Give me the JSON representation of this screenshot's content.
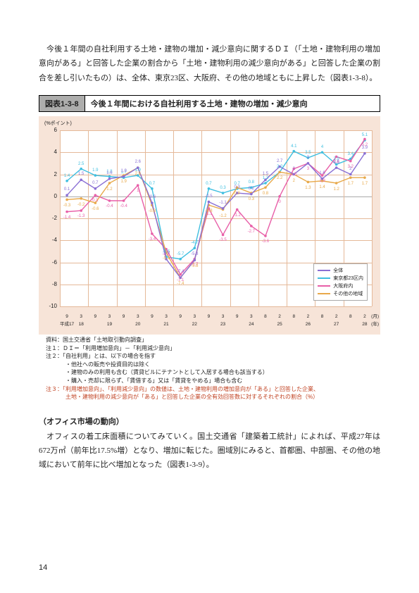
{
  "intro_text": "今後１年間の自社利用する土地・建物の増加・減少意向に関するＤＩ（「土地・建物利用の増加意向がある」と回答した企業の割合から「土地・建物利用の減少意向がある」と回答した企業の割合を差し引いたもの）は、全体、東京23区、大阪府、その他の地域ともに上昇した（図表1-3-8）。",
  "figure_label": "図表1-3-8",
  "figure_title": "今後１年間における自社利用する土地・建物の増加・減少意向",
  "chart": {
    "y_axis_label": "(%ポイント)",
    "ylim": [
      -10,
      6
    ],
    "ytick_step": 2,
    "x_months": [
      "9",
      "3",
      "9",
      "3",
      "9",
      "3",
      "9",
      "3",
      "9",
      "3",
      "9",
      "3",
      "9",
      "3",
      "8",
      "2",
      "8",
      "2",
      "8",
      "2",
      "8",
      "2"
    ],
    "x_years": [
      "平成17",
      "18",
      "",
      "19",
      "",
      "20",
      "",
      "21",
      "",
      "22",
      "",
      "23",
      "",
      "24",
      "",
      "25",
      "",
      "26",
      "",
      "27",
      "",
      "28"
    ],
    "x_suffix_top": "(月)",
    "x_suffix_bottom": "(年)",
    "legend": [
      {
        "label": "全体",
        "color": "#8a6fd4"
      },
      {
        "label": "東京都23区内",
        "color": "#3fbfe0"
      },
      {
        "label": "大阪府内",
        "color": "#e85fa8"
      },
      {
        "label": "その他の地域",
        "color": "#e8a94a"
      }
    ],
    "series": {
      "zentai": [
        0.1,
        1.5,
        0.7,
        1.6,
        1.8,
        2.6,
        -0.6,
        -5.7,
        -7.4,
        -5.8,
        -0.5,
        -1.1,
        0.3,
        0.2,
        1.5,
        2.7,
        2.0,
        3.0,
        1.6,
        2.6,
        2.0,
        3.9
      ],
      "tokyo23": [
        1.4,
        2.5,
        1.9,
        1.8,
        1.7,
        1.9,
        0.7,
        -5.5,
        -5.7,
        -4.7,
        0.7,
        0.3,
        0.7,
        0.8,
        1.2,
        2.2,
        4.1,
        3.5,
        4.0,
        2.9,
        3.4,
        5.1
      ],
      "osaka": [
        -1.4,
        -1.3,
        0.1,
        -0.4,
        -0.4,
        1.0,
        -3.4,
        -4.8,
        -7.1,
        -5.7,
        -1.1,
        -3.5,
        -1.2,
        -2.7,
        -3.6,
        0.0,
        2.5,
        3.0,
        1.9,
        3.6,
        3.2,
        5.2
      ],
      "sonota": [
        -0.3,
        -0.2,
        -0.6,
        1.2,
        1.9,
        2.6,
        -0.8,
        -5.1,
        -7.4,
        -5.8,
        -0.8,
        -1.2,
        0.8,
        0.3,
        0.8,
        2.2,
        2.0,
        1.3,
        1.4,
        1.2,
        1.7,
        1.7
      ]
    },
    "colors": {
      "zentai": "#8a6fd4",
      "tokyo23": "#3fbfe0",
      "osaka": "#e85fa8",
      "sonota": "#e8a94a"
    },
    "background_color": "#f7e4d8",
    "plot_bg": "#ffffff",
    "grid_color": "#e5b999"
  },
  "notes_lines": [
    {
      "text": "資料：国土交通省「土地取引動向調査」",
      "red": false,
      "indent": false
    },
    {
      "text": "注１：ＤＩ＝「利用増加意向」－「利用減少意向」",
      "red": false,
      "indent": false
    },
    {
      "text": "注２：「自社利用」とは、以下の場合を指す",
      "red": false,
      "indent": false
    },
    {
      "text": "・他社への販売や投資目的は除く",
      "red": false,
      "indent": true
    },
    {
      "text": "・建物のみの利用も含む（賃貸ビルにテナントとして入居する場合も該当する）",
      "red": false,
      "indent": true
    },
    {
      "text": "・購入・売却に限らず、「賃借する」又は「賃貸をやめる」場合も含む",
      "red": false,
      "indent": true
    },
    {
      "text": "注３：「利用増加意向」、「利用減少意向」の数値は、土地・建物利用の増加意向が「ある」と回答した企業、",
      "red": true,
      "indent": false
    },
    {
      "text": "土地・建物利用の減少意向が「ある」と回答した企業の全有効回答数に対するそれぞれの割合（%）",
      "red": true,
      "indent": true
    }
  ],
  "subheading": "（オフィス市場の動向）",
  "body_text": "オフィスの着工床面積についてみていく。国土交通省「建築着工統計」によれば、平成27年は672万㎡（前年比17.5%増）となり、増加に転じた。圏域別にみると、首都圏、中部圏、その他の地域において前年に比べ増加となった（図表1-3-9）。",
  "page_number": "14"
}
